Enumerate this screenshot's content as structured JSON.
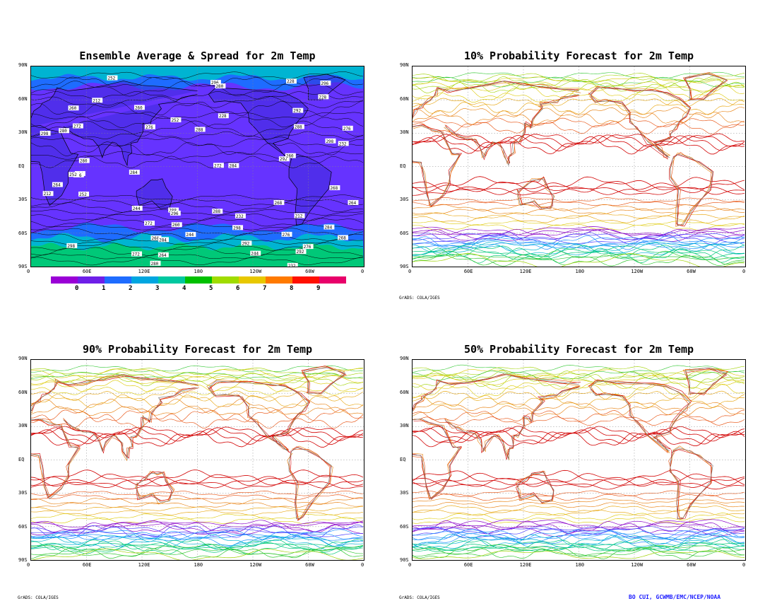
{
  "panels": [
    {
      "id": "avg",
      "title": "Ensemble Average & Spread for 2m Temp",
      "type": "filled"
    },
    {
      "id": "p10",
      "title": "10% Probability Forecast for 2m Temp",
      "type": "contour"
    },
    {
      "id": "p90",
      "title": "90% Probability Forecast for 2m Temp",
      "type": "contour"
    },
    {
      "id": "p50",
      "title": "50% Probability Forecast for 2m Temp",
      "type": "contour"
    }
  ],
  "lat_ticks": [
    "90N",
    "60N",
    "30N",
    "EQ",
    "30S",
    "60S",
    "90S"
  ],
  "lon_ticks": [
    "0",
    "60E",
    "120E",
    "180",
    "120W",
    "60W",
    "0"
  ],
  "colorbar": {
    "labels": [
      "0",
      "1",
      "2",
      "3",
      "4",
      "5",
      "6",
      "7",
      "8",
      "9"
    ],
    "colors": [
      "#9a00d6",
      "#6e1fe8",
      "#1e6cff",
      "#00a6e0",
      "#00c8a0",
      "#00c000",
      "#a0dc00",
      "#e8c800",
      "#ff7a00",
      "#ff1000",
      "#e8006a"
    ]
  },
  "contour_colors": [
    "#8a00c8",
    "#4a3cff",
    "#1e90ff",
    "#00b4d2",
    "#00c878",
    "#32c832",
    "#a0d200",
    "#dcc800",
    "#e6a000",
    "#e67800",
    "#e64600",
    "#d20000"
  ],
  "avg_colors": {
    "fill": "#6633ff",
    "fill2": "#3a2ad8",
    "cold1": "#1e6cff",
    "cold2": "#00b4d2",
    "cold3": "#00c878",
    "warm": "#a0dc00"
  },
  "avg_contour_labels": [
    "276",
    "272",
    "292",
    "284",
    "296",
    "280",
    "268",
    "288",
    "298",
    "260",
    "264",
    "252",
    "244",
    "232",
    "228",
    "212"
  ],
  "credits": {
    "grads": "GrADS: COLA/IGES",
    "noaa": "BO CUI, GCWMB/EMC/NCEP/NOAA"
  }
}
